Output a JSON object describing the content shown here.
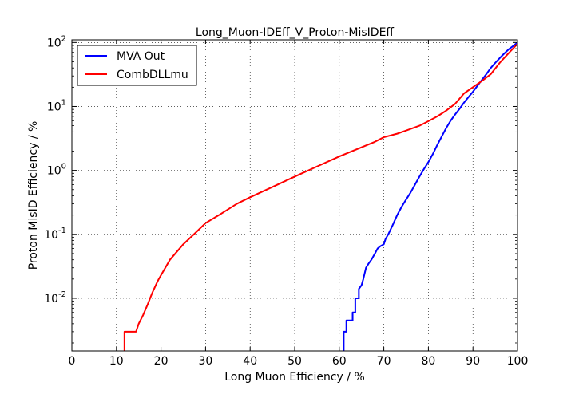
{
  "chart_data": {
    "type": "line",
    "title": "Long_Muon-IDEff_V_Proton-MisIDEff",
    "xlabel": "Long Muon Efficiency / %",
    "ylabel": "Proton MisID Efficiency / %",
    "xlim": [
      0,
      100
    ],
    "ylim": [
      0.0015,
      110
    ],
    "yscale": "log",
    "grid": true,
    "legend_position": "top-left",
    "x_ticks": [
      0,
      10,
      20,
      30,
      40,
      50,
      60,
      70,
      80,
      90,
      100
    ],
    "y_ticks": [
      {
        "value": 0.01,
        "base": "10",
        "exp": "-2"
      },
      {
        "value": 0.1,
        "base": "10",
        "exp": "-1"
      },
      {
        "value": 1,
        "base": "10",
        "exp": "0"
      },
      {
        "value": 10,
        "base": "10",
        "exp": "1"
      },
      {
        "value": 100,
        "base": "10",
        "exp": "2"
      }
    ],
    "series": [
      {
        "name": "MVA Out",
        "color": "#0000ff",
        "x": [
          60.8,
          61.0,
          61.0,
          61.6,
          61.6,
          63.0,
          63.0,
          63.6,
          63.6,
          64.4,
          64.4,
          65.0,
          65.4,
          66.0,
          66.6,
          67.2,
          68.0,
          68.6,
          69.2,
          70.0,
          70.4,
          71.0,
          72.0,
          73.0,
          74.0,
          75.0,
          76.0,
          77.0,
          78.0,
          79.0,
          80.0,
          81.0,
          82.0,
          83.0,
          84.0,
          85.0,
          86.0,
          87.0,
          88.0,
          89.0,
          90.0,
          91.0,
          92.0,
          93.0,
          94.0,
          95.0,
          96.0,
          97.0,
          98.0,
          99.0,
          100.0
        ],
        "y": [
          0.0015,
          0.0015,
          0.003,
          0.003,
          0.0045,
          0.0045,
          0.006,
          0.006,
          0.01,
          0.01,
          0.014,
          0.016,
          0.02,
          0.03,
          0.035,
          0.04,
          0.05,
          0.06,
          0.065,
          0.07,
          0.085,
          0.1,
          0.14,
          0.2,
          0.27,
          0.35,
          0.45,
          0.6,
          0.8,
          1.05,
          1.35,
          1.8,
          2.5,
          3.4,
          4.6,
          6.0,
          7.5,
          9.2,
          11.5,
          14.0,
          17.0,
          21.0,
          26.0,
          32.0,
          40.0,
          48.0,
          57.0,
          67.0,
          78.0,
          88.0,
          100.0
        ]
      },
      {
        "name": "CombDLLmu",
        "color": "#ff0000",
        "x": [
          11.8,
          11.8,
          14.4,
          15.0,
          16.0,
          17.0,
          18.0,
          19.0,
          19.5,
          20.0,
          22.0,
          25.0,
          28.0,
          30.0,
          33.0,
          37.0,
          40.0,
          45.0,
          50.0,
          55.0,
          60.0,
          65.0,
          68.0,
          70.0,
          73.0,
          75.0,
          78.0,
          80.0,
          82.0,
          84.0,
          86.0,
          88.0,
          90.0,
          92.0,
          94.0,
          96.0,
          98.0,
          100.0
        ],
        "y": [
          0.0015,
          0.003,
          0.003,
          0.004,
          0.0055,
          0.008,
          0.012,
          0.017,
          0.02,
          0.023,
          0.04,
          0.07,
          0.11,
          0.15,
          0.2,
          0.3,
          0.38,
          0.55,
          0.8,
          1.15,
          1.65,
          2.3,
          2.8,
          3.3,
          3.75,
          4.2,
          5.0,
          5.9,
          7.0,
          8.6,
          11.0,
          16.0,
          20.0,
          25.0,
          32.0,
          48.0,
          68.0,
          95.0
        ]
      }
    ]
  }
}
